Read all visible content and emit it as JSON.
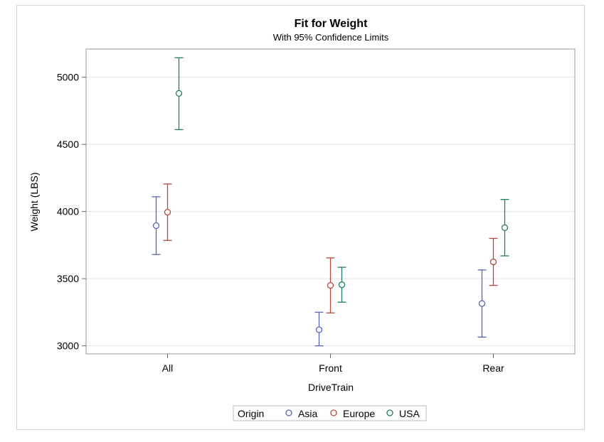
{
  "chart_data": {
    "type": "scatter",
    "title": "Fit for Weight",
    "subtitle": "With 95% Confidence Limits",
    "xlabel": "DriveTrain",
    "ylabel": "Weight (LBS)",
    "categories": [
      "All",
      "Front",
      "Rear"
    ],
    "ylim": [
      2940,
      5210
    ],
    "yticks": [
      3000,
      3500,
      4000,
      4500,
      5000
    ],
    "grid": true,
    "legend": {
      "title": "Origin",
      "placement": "bottom-center"
    },
    "series": [
      {
        "name": "Asia",
        "color": "#5a64b6",
        "values": [
          3895,
          3120,
          3315
        ],
        "lower": [
          3680,
          3000,
          3065
        ],
        "upper": [
          4110,
          3250,
          3565
        ]
      },
      {
        "name": "Europe",
        "color": "#b8473a",
        "values": [
          3995,
          3450,
          3625
        ],
        "lower": [
          3785,
          3245,
          3450
        ],
        "upper": [
          4205,
          3655,
          3800
        ]
      },
      {
        "name": "USA",
        "color": "#1f7a66",
        "values": [
          4880,
          3455,
          3880
        ],
        "lower": [
          4610,
          3325,
          3670
        ],
        "upper": [
          5145,
          3585,
          4090
        ]
      }
    ]
  }
}
